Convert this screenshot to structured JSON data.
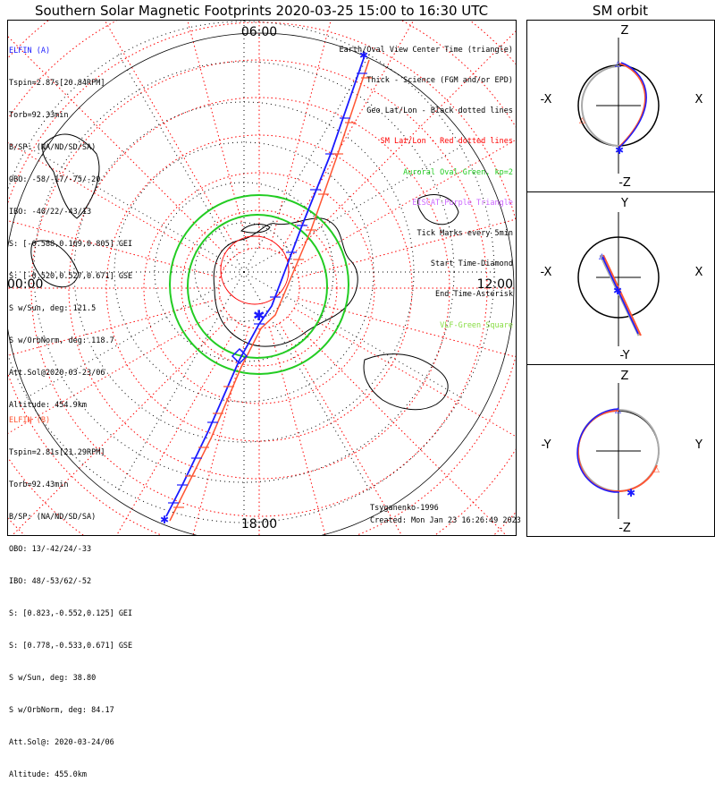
{
  "title": "Southern Solar Magnetic Footprints 2020-03-25 15:00 to 16:30 UTC",
  "orbit_title": "SM orbit",
  "main_plot": {
    "mlt_labels": {
      "top": "06:00",
      "bottom": "18:00",
      "left": "00:00",
      "right": "12:00"
    }
  },
  "elfin_a": {
    "name": "ELFIN (A)",
    "color": "#1a1aff",
    "lines": [
      "Tspin=2.87s[20.84RPM]",
      "Torb=92.33min",
      "B/SP: (NA/ND/SD/SA)",
      "OBO: -58/-17/-75/-20",
      "IBO: -40/22/-43/13",
      "S: [-0.588,0.169,0.805] GEI",
      "S: [-0.520,0.527,0.671] GSE",
      "S w/Sun, deg: 121.5",
      "S w/OrbNorm, deg: 118.7",
      "Att.Sol@2020-03-23/06",
      "Altitude: 454.9km"
    ]
  },
  "elfin_b": {
    "name": "ELFIN (B)",
    "color": "#ff5533",
    "lines": [
      "Tspin=2.81s[21.29RPM]",
      "Torb=92.43min",
      "B/SP: (NA/ND/SD/SA)",
      "OBO: 13/-42/24/-33",
      "IBO: 48/-53/62/-52",
      "S: [0.823,-0.552,0.125] GEI",
      "S: [0.778,-0.533,0.671] GSE",
      "S w/Sun, deg: 38.80",
      "S w/OrbNorm, deg: 84.17",
      "Att.Sol@: 2020-03-24/06",
      "Altitude: 455.0km"
    ]
  },
  "legend": [
    {
      "text": "Earth/Oval View Center Time (triangle)",
      "color": "#000000"
    },
    {
      "text": "Thick - Science (FGM and/or EPD)",
      "color": "#000000"
    },
    {
      "text": "Geo Lat/Lon - Black dotted lines",
      "color": "#000000"
    },
    {
      "text": "SM Lat/Lon - Red dotted lines",
      "color": "#ff0000"
    },
    {
      "text": "Auroral Oval-Green, kp=2",
      "color": "#22cc22"
    },
    {
      "text": "EISCAT-Purple Triangle",
      "color": "#cc66ff"
    },
    {
      "text": "Tick Marks every 5min",
      "color": "#000000"
    },
    {
      "text": "Start Time-Diamond",
      "color": "#000000"
    },
    {
      "text": "End Time-Asterisk",
      "color": "#000000"
    },
    {
      "text": "VLF-Green Square",
      "color": "#88dd44"
    }
  ],
  "footer": {
    "model": "Tsyganenko-1996",
    "created": "Created: Mon Jan 23 16:26:49 2023"
  },
  "orbit_panels": [
    {
      "top": "Z",
      "bottom": "-Z",
      "left": "-X",
      "right": "X"
    },
    {
      "top": "Y",
      "bottom": "-Y",
      "left": "-X",
      "right": "X"
    },
    {
      "top": "Z",
      "bottom": "-Z",
      "left": "-Y",
      "right": "Y"
    }
  ],
  "colors": {
    "elfin_a": "#1a1aff",
    "elfin_b": "#ff5533",
    "sm_grid": "#ff0000",
    "auroral_oval": "#22cc22",
    "orbit_gray": "#aaaaaa"
  }
}
